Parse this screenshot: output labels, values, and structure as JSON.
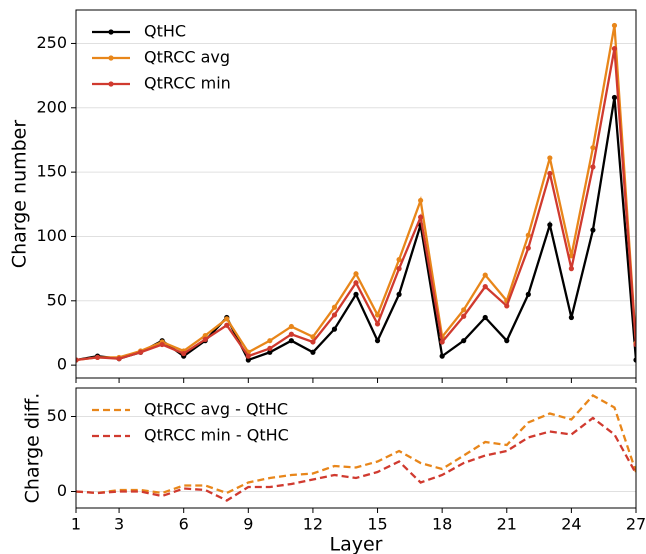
{
  "chart_data": [
    {
      "type": "line",
      "ylabel": "Charge number",
      "x": [
        1,
        2,
        3,
        4,
        5,
        6,
        7,
        8,
        9,
        10,
        11,
        12,
        13,
        14,
        15,
        16,
        17,
        18,
        19,
        20,
        21,
        22,
        23,
        24,
        25,
        26,
        27
      ],
      "series": [
        {
          "name": "QtHC",
          "color": "#000000",
          "values": [
            4,
            7,
            5,
            10,
            19,
            7,
            19,
            37,
            4,
            10,
            19,
            10,
            28,
            55,
            19,
            55,
            109,
            7,
            19,
            37,
            19,
            55,
            109,
            37,
            105,
            208,
            4
          ]
        },
        {
          "name": "QtRCC avg",
          "color": "#e8861a",
          "values": [
            4,
            6,
            6,
            11,
            18,
            11,
            23,
            36,
            10,
            19,
            30,
            22,
            45,
            71,
            39,
            82,
            128,
            22,
            43,
            70,
            50,
            101,
            161,
            85,
            169,
            264,
            17
          ]
        },
        {
          "name": "QtRCC min",
          "color": "#d03a2f",
          "values": [
            4,
            6,
            5,
            10,
            16,
            9,
            20,
            31,
            7,
            13,
            24,
            18,
            39,
            64,
            32,
            75,
            115,
            18,
            38,
            61,
            46,
            91,
            149,
            75,
            154,
            246,
            16
          ]
        }
      ],
      "marker": true,
      "linestyle": "solid",
      "xlim": [
        1,
        27
      ],
      "xticks": [
        1,
        3,
        6,
        9,
        12,
        15,
        18,
        21,
        24,
        27
      ],
      "ylim": [
        -10,
        276
      ],
      "yticks": [
        0,
        50,
        100,
        150,
        200,
        250
      ],
      "grid": true,
      "legend": "upper left"
    },
    {
      "type": "line",
      "ylabel": "Charge diff.",
      "xlabel": "Layer",
      "x": [
        1,
        2,
        3,
        4,
        5,
        6,
        7,
        8,
        9,
        10,
        11,
        12,
        13,
        14,
        15,
        16,
        17,
        18,
        19,
        20,
        21,
        22,
        23,
        24,
        25,
        26,
        27
      ],
      "series": [
        {
          "name": "QtRCC avg - QtHC",
          "color": "#e8861a",
          "values": [
            0,
            -1,
            1,
            1,
            -1,
            4,
            4,
            -1,
            6,
            9,
            11,
            12,
            17,
            16,
            20,
            27,
            19,
            15,
            24,
            33,
            31,
            46,
            52,
            48,
            64,
            56,
            13
          ]
        },
        {
          "name": "QtRCC min - QtHC",
          "color": "#d03a2f",
          "values": [
            0,
            -1,
            0,
            0,
            -3,
            2,
            1,
            -6,
            3,
            3,
            5,
            8,
            11,
            9,
            13,
            20,
            6,
            11,
            19,
            24,
            27,
            36,
            40,
            38,
            49,
            38,
            12
          ]
        }
      ],
      "marker": false,
      "linestyle": "dashed",
      "xlim": [
        1,
        27
      ],
      "xticks": [
        1,
        3,
        6,
        9,
        12,
        15,
        18,
        21,
        24,
        27
      ],
      "ylim": [
        -11,
        69
      ],
      "yticks": [
        0,
        50
      ],
      "grid": true,
      "legend": "upper left"
    }
  ]
}
